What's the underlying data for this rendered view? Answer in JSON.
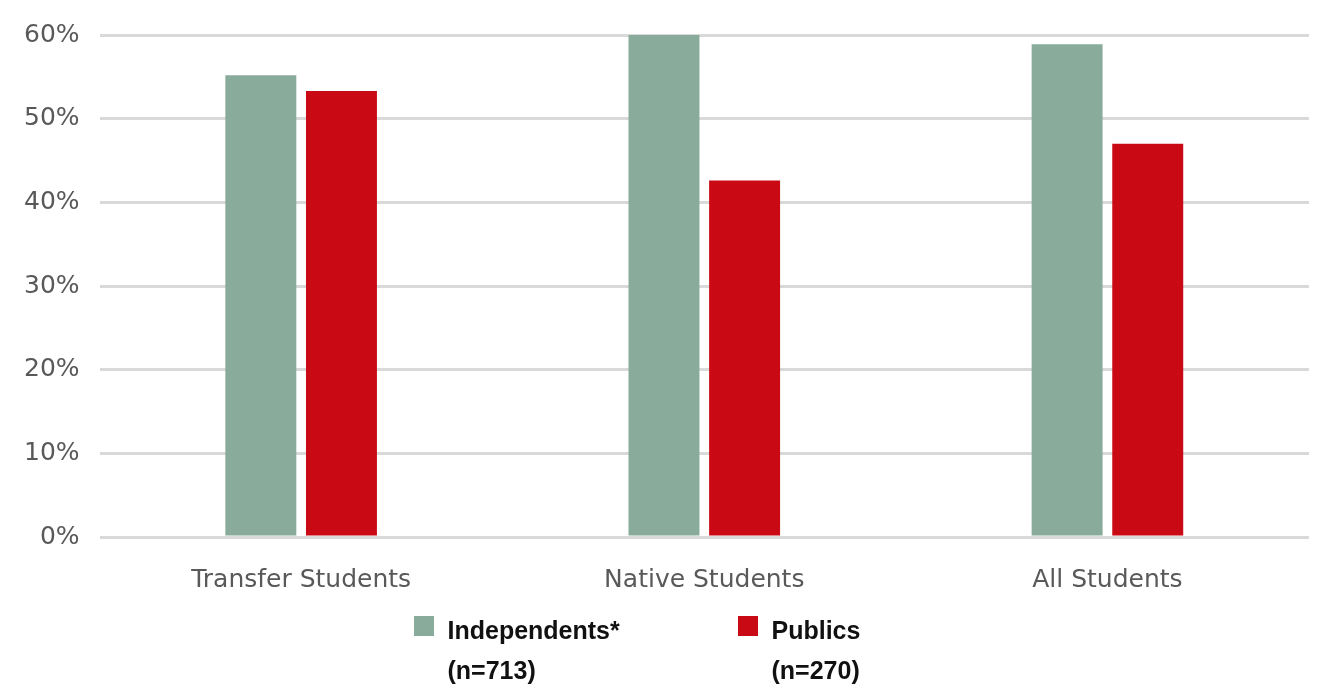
{
  "chart_data": {
    "type": "bar",
    "categories": [
      "Transfer Students",
      "Native Students",
      "All Students"
    ],
    "series": [
      {
        "name": "Independents* (n=713)",
        "color": "#88ab9b",
        "values": [
          55.2,
          60.0,
          58.9
        ]
      },
      {
        "name": "Publics (n=270)",
        "color": "#c90a14",
        "values": [
          53.3,
          42.6,
          47.0
        ]
      }
    ],
    "ylim": [
      0,
      60
    ],
    "yticks": [
      {
        "value": 0,
        "label": "0%"
      },
      {
        "value": 10,
        "label": "10%"
      },
      {
        "value": 20,
        "label": "20%"
      },
      {
        "value": 30,
        "label": "30%"
      },
      {
        "value": 40,
        "label": "40%"
      },
      {
        "value": 50,
        "label": "50%"
      },
      {
        "value": 60,
        "label": "60%"
      }
    ],
    "grid": "y",
    "legend": "bottom"
  }
}
